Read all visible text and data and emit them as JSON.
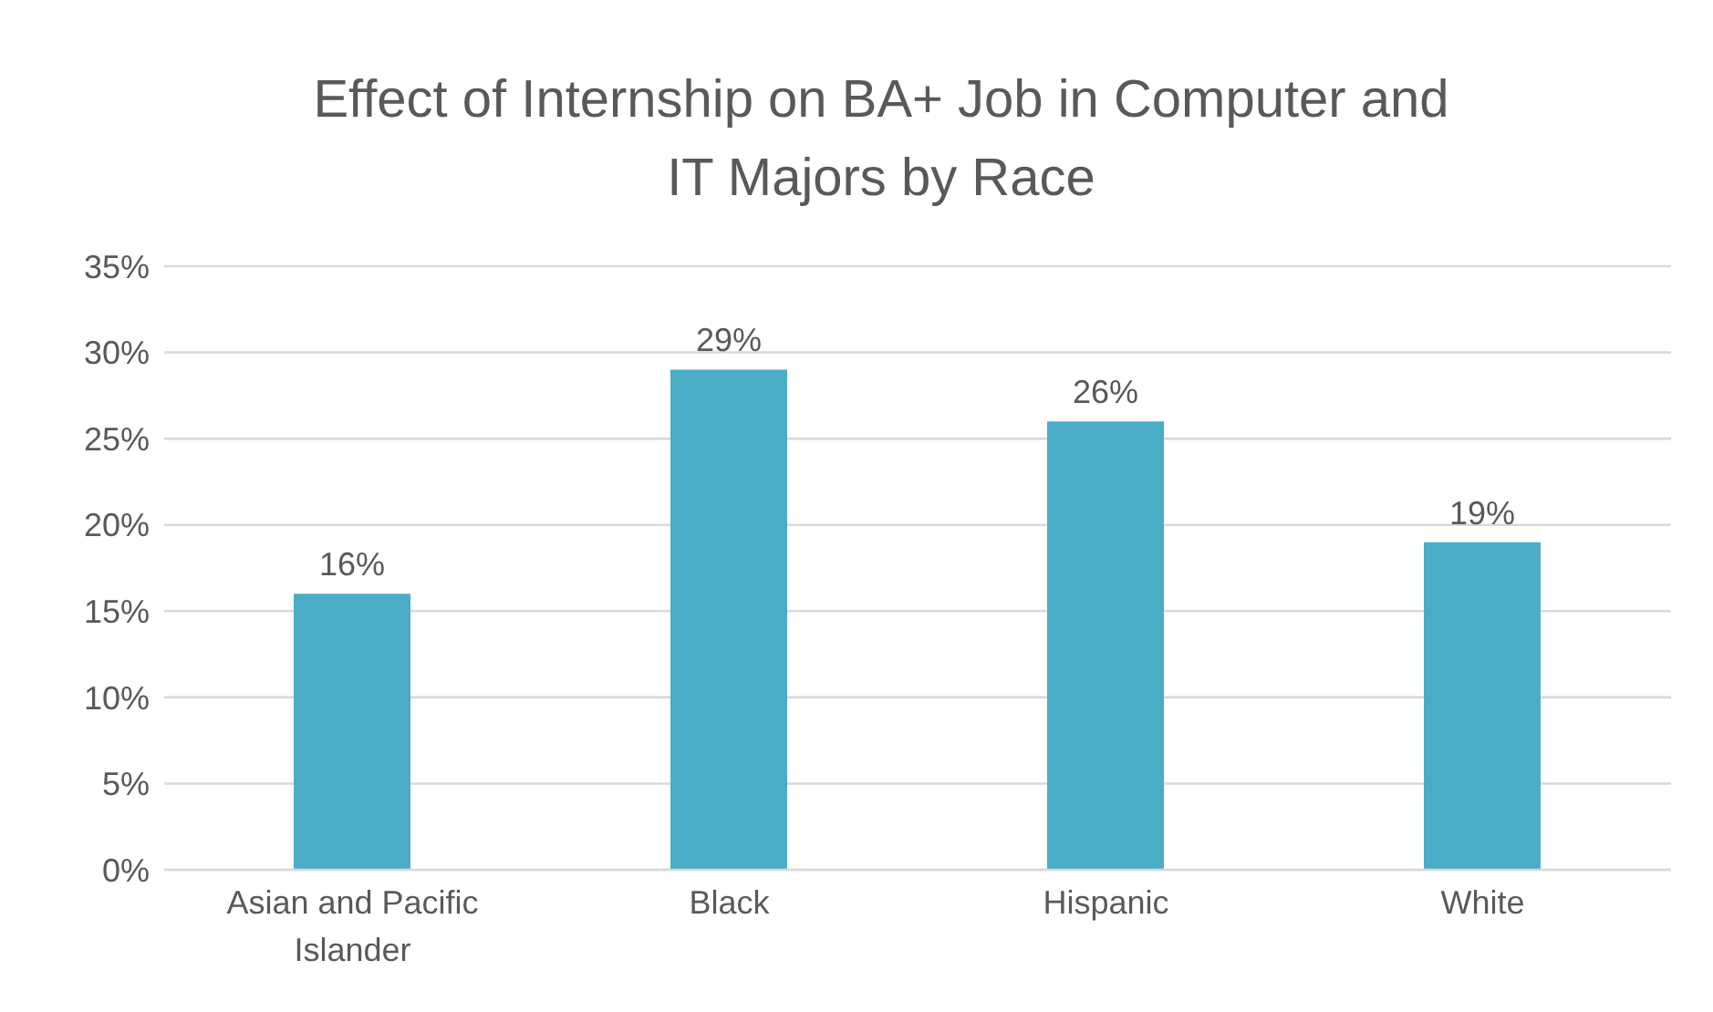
{
  "chart_data": {
    "type": "bar",
    "title": "Effect of Internship on BA+ Job in Computer and IT Majors by Race",
    "categories": [
      "Asian and Pacific Islander",
      "Black",
      "Hispanic",
      "White"
    ],
    "values": [
      16,
      29,
      26,
      19
    ],
    "value_labels": [
      "16%",
      "29%",
      "26%",
      "19%"
    ],
    "color": "#4bacc6",
    "ylim": [
      0,
      35
    ],
    "yticks": [
      {
        "value": 0,
        "label": "0%"
      },
      {
        "value": 5,
        "label": "5%"
      },
      {
        "value": 10,
        "label": "10%"
      },
      {
        "value": 15,
        "label": "15%"
      },
      {
        "value": 20,
        "label": "20%"
      },
      {
        "value": 25,
        "label": "25%"
      },
      {
        "value": 30,
        "label": "30%"
      },
      {
        "value": 35,
        "label": "35%"
      }
    ],
    "grid": "y"
  }
}
